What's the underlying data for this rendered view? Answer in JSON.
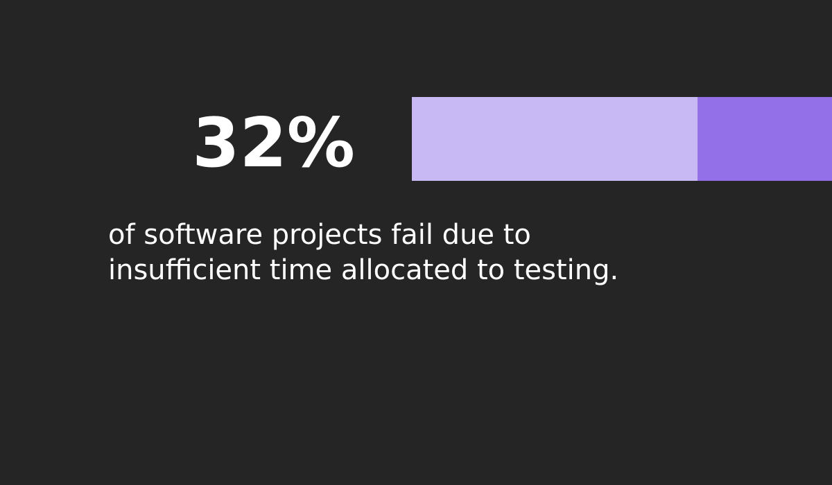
{
  "chart_data": {
    "type": "progress",
    "values": [
      32
    ],
    "value_labels": [
      "32%"
    ],
    "xlim": [
      0,
      100
    ],
    "color": "#9370e8",
    "track_color": "#c8b9f5",
    "caption": [
      "of software projects fail due to",
      "insufficient time allocated to testing."
    ]
  }
}
